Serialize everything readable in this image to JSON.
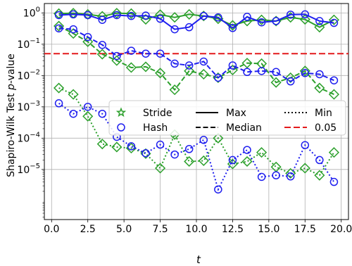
{
  "chart_data": {
    "type": "line",
    "title": "",
    "xlabel": "t",
    "ylabel_prefix": "Shapiro-Wilk Test ",
    "ylabel_italic": "p",
    "ylabel_suffix": "-value",
    "xlim": [
      -0.5,
      20.5
    ],
    "ylim_exp": [
      -6.6,
      0.3
    ],
    "yscale": "log",
    "grid": true,
    "x_ticks": [
      0.0,
      2.5,
      5.0,
      7.5,
      10.0,
      12.5,
      15.0,
      17.5,
      20.0
    ],
    "x_tick_labels": [
      "0.0",
      "2.5",
      "5.0",
      "7.5",
      "10.0",
      "12.5",
      "15.0",
      "17.5",
      "20.0"
    ],
    "y_ticks_exp": [
      0,
      -1,
      -2,
      -3,
      -4,
      -5
    ],
    "y_tick_labels": [
      {
        "base": "10",
        "exp": "0"
      },
      {
        "base": "10",
        "exp": "−1"
      },
      {
        "base": "10",
        "exp": "−2"
      },
      {
        "base": "10",
        "exp": "−3"
      },
      {
        "base": "10",
        "exp": "−4"
      },
      {
        "base": "10",
        "exp": "−5"
      }
    ],
    "x": [
      0.5,
      1.5,
      2.5,
      3.5,
      4.5,
      5.5,
      6.5,
      7.5,
      8.5,
      9.5,
      10.5,
      11.5,
      12.5,
      13.5,
      14.5,
      15.5,
      16.5,
      17.5,
      18.5,
      19.5
    ],
    "threshold": {
      "value": 0.05,
      "color": "#e31a1c",
      "label": "0.05"
    },
    "series": [
      {
        "group": "Stride",
        "stat": "Max",
        "color": "#2ca02c",
        "marker": "diamond",
        "dash": "solid",
        "values": [
          0.95,
          0.98,
          0.9,
          0.78,
          0.98,
          0.95,
          0.62,
          0.88,
          0.72,
          0.9,
          0.8,
          0.65,
          0.4,
          0.55,
          0.6,
          0.55,
          0.72,
          0.62,
          0.35,
          0.6
        ]
      },
      {
        "group": "Hash",
        "stat": "Max",
        "color": "#1f1fef",
        "marker": "circle",
        "dash": "solid",
        "values": [
          0.85,
          0.9,
          0.85,
          0.6,
          0.85,
          0.8,
          0.82,
          0.65,
          0.3,
          0.35,
          0.8,
          0.72,
          0.33,
          0.75,
          0.5,
          0.55,
          0.88,
          0.9,
          0.55,
          0.48
        ]
      },
      {
        "group": "Stride",
        "stat": "Median",
        "color": "#2ca02c",
        "marker": "diamond",
        "dash": "dashed",
        "values": [
          0.38,
          0.22,
          0.12,
          0.048,
          0.03,
          0.018,
          0.019,
          0.012,
          0.0035,
          0.014,
          0.011,
          0.0085,
          0.015,
          0.025,
          0.024,
          0.006,
          0.0085,
          0.014,
          0.004,
          0.0025
        ]
      },
      {
        "group": "Hash",
        "stat": "Median",
        "color": "#1f1fef",
        "marker": "circle",
        "dash": "dashed",
        "values": [
          0.32,
          0.3,
          0.17,
          0.095,
          0.042,
          0.062,
          0.05,
          0.05,
          0.024,
          0.021,
          0.028,
          0.0085,
          0.021,
          0.013,
          0.014,
          0.013,
          0.0065,
          0.012,
          0.011,
          0.007
        ]
      },
      {
        "group": "Stride",
        "stat": "Min",
        "color": "#2ca02c",
        "marker": "diamond",
        "dash": "dotted",
        "values": [
          0.004,
          0.0025,
          0.0005,
          6.5e-05,
          5.2e-05,
          4.8e-05,
          3.2e-05,
          1.1e-05,
          0.00013,
          1.8e-05,
          1.9e-05,
          0.0001,
          1.5e-05,
          1.8e-05,
          3.5e-05,
          1.2e-05,
          7.5e-06,
          1.1e-05,
          6.5e-06,
          3.5e-05
        ]
      },
      {
        "group": "Hash",
        "stat": "Min",
        "color": "#1f1fef",
        "marker": "circle",
        "dash": "dotted",
        "values": [
          0.0013,
          0.0006,
          0.001,
          0.0006,
          0.00011,
          5.5e-05,
          3.3e-05,
          6.2e-05,
          3e-05,
          4.5e-05,
          8.8e-05,
          2.3e-06,
          2e-05,
          4.2e-05,
          5.8e-06,
          6.5e-06,
          6e-06,
          6e-05,
          2e-05,
          4e-06
        ]
      }
    ],
    "legend": {
      "placement": "center-right",
      "entries": [
        {
          "label": "Stride",
          "kind": "star",
          "color": "#2ca02c"
        },
        {
          "label": "Max",
          "kind": "solid",
          "color": "#000000"
        },
        {
          "label": "Min",
          "kind": "dotted",
          "color": "#000000"
        },
        {
          "label": "Hash",
          "kind": "circle",
          "color": "#1f1fef"
        },
        {
          "label": "Median",
          "kind": "dashed",
          "color": "#000000"
        },
        {
          "label": "0.05",
          "kind": "redline",
          "color": "#e31a1c"
        }
      ]
    }
  }
}
